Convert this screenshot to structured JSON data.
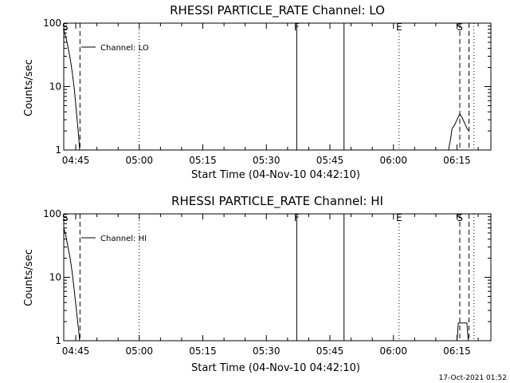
{
  "chart_data": [
    {
      "type": "line",
      "title": "RHESSI PARTICLE_RATE Channel: LO",
      "xlabel": "Start Time (04-Nov-10 04:42:10)",
      "ylabel": "Counts/sec",
      "yscale": "log",
      "ylim": [
        1,
        100
      ],
      "xlim": [
        "04:42:10",
        "06:23:00"
      ],
      "xticks": [
        "04:45",
        "05:00",
        "05:15",
        "05:30",
        "05:45",
        "06:00",
        "06:15"
      ],
      "yticks": [
        "1",
        "10",
        "100"
      ],
      "legend": "Channel: LO",
      "series": [
        {
          "name": "Channel: LO",
          "segments": [
            {
              "x": [
                "04:42:10",
                "04:42:40",
                "04:43:10",
                "04:43:40",
                "04:44:10",
                "04:44:40",
                "04:45:10",
                "04:45:40",
                "04:45:55"
              ],
              "y": [
                78,
                60,
                42,
                28,
                17,
                9,
                4,
                1.7,
                1
              ]
            },
            {
              "x": [
                "06:13:00",
                "06:13:30",
                "06:13:50",
                "06:14:20",
                "06:15:00",
                "06:15:40",
                "06:16:20",
                "06:17:00",
                "06:17:20",
                "06:17:50"
              ],
              "y": [
                1,
                1.5,
                2.2,
                2.4,
                3.0,
                3.7,
                3.1,
                2.5,
                2.2,
                2.0
              ]
            }
          ]
        }
      ],
      "markers": [
        {
          "label": "S",
          "time": "04:42:30",
          "style": "none"
        },
        {
          "label": "",
          "time": "04:46:00",
          "style": "dashed"
        },
        {
          "label": "",
          "time": "04:59:58",
          "style": "dotted"
        },
        {
          "label": "F",
          "time": "05:37:10",
          "style": "solid"
        },
        {
          "label": "",
          "time": "05:48:20",
          "style": "solid"
        },
        {
          "label": "E",
          "time": "06:01:20",
          "style": "dotted"
        },
        {
          "label": "S",
          "time": "06:15:40",
          "style": "dashed"
        },
        {
          "label": "",
          "time": "06:17:50",
          "style": "dashed"
        },
        {
          "label": "",
          "time": "06:19:00",
          "style": "dotted"
        }
      ]
    },
    {
      "type": "line",
      "title": "RHESSI PARTICLE_RATE Channel: HI",
      "xlabel": "Start Time (04-Nov-10 04:42:10)",
      "ylabel": "Counts/sec",
      "yscale": "log",
      "ylim": [
        1,
        100
      ],
      "xlim": [
        "04:42:10",
        "06:23:00"
      ],
      "xticks": [
        "04:45",
        "05:00",
        "05:15",
        "05:30",
        "05:45",
        "06:00",
        "06:15"
      ],
      "yticks": [
        "1",
        "10",
        "100"
      ],
      "legend": "Channel: HI",
      "series": [
        {
          "name": "Channel: HI",
          "segments": [
            {
              "x": [
                "04:42:10",
                "04:42:40",
                "04:43:10",
                "04:43:40",
                "04:44:10",
                "04:44:40",
                "04:45:10",
                "04:45:40",
                "04:45:55"
              ],
              "y": [
                60,
                45,
                30,
                20,
                12,
                6,
                3,
                1.5,
                1
              ]
            },
            {
              "x": [
                "06:15:00",
                "06:15:20",
                "06:17:20",
                "06:17:40"
              ],
              "y": [
                1,
                1.9,
                1.9,
                1
              ]
            }
          ]
        }
      ],
      "markers": [
        {
          "label": "S",
          "time": "04:42:30",
          "style": "none"
        },
        {
          "label": "",
          "time": "04:46:00",
          "style": "dashed"
        },
        {
          "label": "",
          "time": "04:59:58",
          "style": "dotted"
        },
        {
          "label": "F",
          "time": "05:37:10",
          "style": "solid"
        },
        {
          "label": "",
          "time": "05:48:20",
          "style": "solid"
        },
        {
          "label": "E",
          "time": "06:01:20",
          "style": "dotted"
        },
        {
          "label": "S",
          "time": "06:15:40",
          "style": "dashed"
        },
        {
          "label": "",
          "time": "06:17:50",
          "style": "dashed"
        },
        {
          "label": "",
          "time": "06:19:00",
          "style": "dotted"
        }
      ]
    }
  ],
  "footer": {
    "timestamp": "17-Oct-2021 01:52"
  }
}
